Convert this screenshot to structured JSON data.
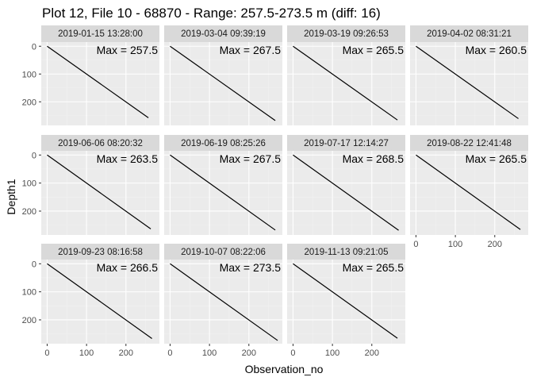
{
  "chart_data": {
    "type": "line",
    "title": "Plot 12, File 10 - 68870 - Range: 257.5-273.5 m (diff: 16)",
    "xlabel": "Observation_no",
    "ylabel": "Depth1",
    "x_ticks": [
      "0",
      "100",
      "200"
    ],
    "y_ticks": [
      "0",
      "100",
      "200"
    ],
    "xlim": [
      -15,
      285
    ],
    "ylim": [
      -15,
      285
    ],
    "y_reversed": true,
    "grid": true,
    "colors": {
      "panel_bg": "#ebebeb",
      "strip_bg": "#d9d9d9",
      "grid_major": "#ffffff",
      "grid_minor": "#f2f2f2",
      "line": "#000000",
      "axis_text": "#4d4d4d",
      "text": "#000000"
    },
    "facets": [
      {
        "label": "2019-01-15 13:28:00",
        "annotation": "Max = 257.5",
        "x": [
          0,
          257
        ],
        "y": [
          0,
          257.5
        ]
      },
      {
        "label": "2019-03-04 09:39:19",
        "annotation": "Max = 267.5",
        "x": [
          0,
          267
        ],
        "y": [
          0,
          267.5
        ]
      },
      {
        "label": "2019-03-19 09:26:53",
        "annotation": "Max = 265.5",
        "x": [
          0,
          265
        ],
        "y": [
          0,
          265.5
        ]
      },
      {
        "label": "2019-04-02 08:31:21",
        "annotation": "Max = 260.5",
        "x": [
          0,
          260
        ],
        "y": [
          0,
          260.5
        ]
      },
      {
        "label": "2019-06-06 08:20:32",
        "annotation": "Max = 263.5",
        "x": [
          0,
          263
        ],
        "y": [
          0,
          263.5
        ]
      },
      {
        "label": "2019-06-19 08:25:26",
        "annotation": "Max = 267.5",
        "x": [
          0,
          267
        ],
        "y": [
          0,
          267.5
        ]
      },
      {
        "label": "2019-07-17 12:14:27",
        "annotation": "Max = 268.5",
        "x": [
          0,
          268
        ],
        "y": [
          0,
          268.5
        ]
      },
      {
        "label": "2019-08-22 12:41:48",
        "annotation": "Max = 265.5",
        "x": [
          0,
          265
        ],
        "y": [
          0,
          265.5
        ]
      },
      {
        "label": "2019-09-23 08:16:58",
        "annotation": "Max = 266.5",
        "x": [
          0,
          266
        ],
        "y": [
          0,
          266.5
        ]
      },
      {
        "label": "2019-10-07 08:22:06",
        "annotation": "Max = 273.5",
        "x": [
          0,
          273
        ],
        "y": [
          0,
          273.5
        ]
      },
      {
        "label": "2019-11-13 09:21:05",
        "annotation": "Max = 265.5",
        "x": [
          0,
          265
        ],
        "y": [
          0,
          265.5
        ]
      }
    ]
  }
}
